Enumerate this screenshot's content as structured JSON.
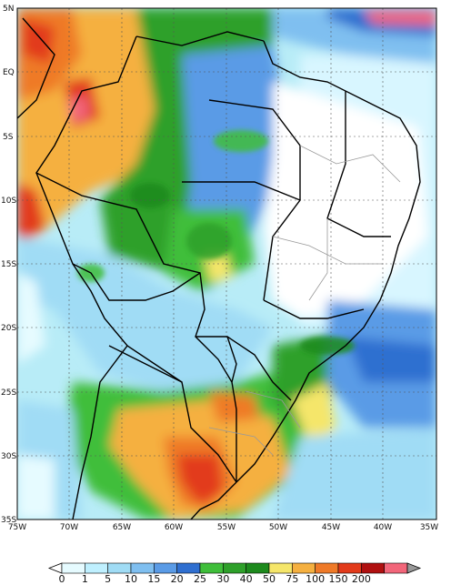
{
  "map": {
    "lat_labels": [
      "5N",
      "EQ",
      "5S",
      "10S",
      "15S",
      "20S",
      "25S",
      "30S",
      "35S"
    ],
    "lon_labels": [
      "75W",
      "70W",
      "65W",
      "60W",
      "55W",
      "50W",
      "45W",
      "40W",
      "35W"
    ],
    "lon_range": [
      -75,
      -35
    ],
    "lat_range": [
      -35,
      5
    ]
  },
  "colorbar": {
    "ticks": [
      "0",
      "1",
      "5",
      "10",
      "15",
      "20",
      "25",
      "30",
      "40",
      "50",
      "75",
      "100",
      "150",
      "200"
    ],
    "colors": [
      "#e6fbff",
      "#bff0ff",
      "#a0dcf5",
      "#7fbff0",
      "#5a9be6",
      "#2f6fd0",
      "#3fbe3a",
      "#2ea02a",
      "#1d8a1d",
      "#f5e66a",
      "#f5b040",
      "#ef7a28",
      "#e23a1a",
      "#b01010",
      "#f2667a"
    ],
    "under_color": "#ffffff",
    "over_color": "#999999"
  }
}
